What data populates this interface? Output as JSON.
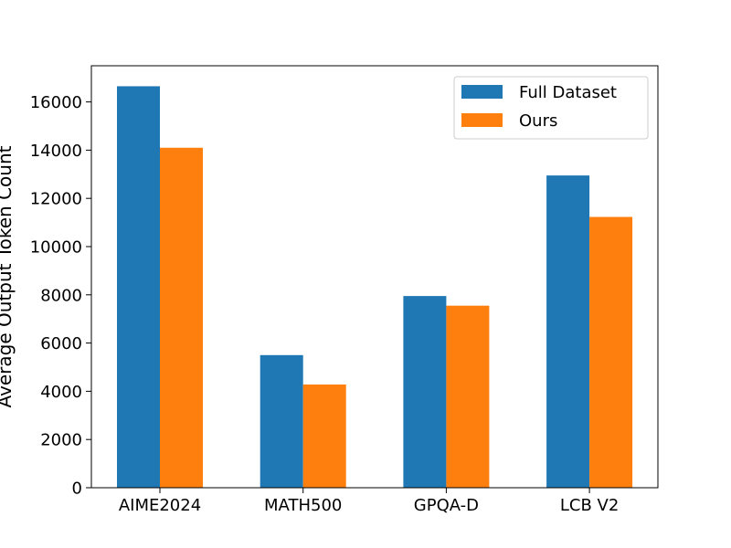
{
  "chart_data": {
    "type": "bar",
    "categories": [
      "AIME2024",
      "MATH500",
      "GPQA-D",
      "LCB V2"
    ],
    "series": [
      {
        "name": "Full Dataset",
        "color": "#1f77b4",
        "values": [
          16650,
          5500,
          7950,
          12950
        ]
      },
      {
        "name": "Ours",
        "color": "#ff7f0e",
        "values": [
          14100,
          4280,
          7550,
          11230
        ]
      }
    ],
    "ylabel": "Average Output Token Count",
    "xlabel": "",
    "ylim": [
      0,
      17500
    ],
    "yticks": [
      0,
      2000,
      4000,
      6000,
      8000,
      10000,
      12000,
      14000,
      16000
    ],
    "grid": false,
    "legend_position": "top-right"
  }
}
